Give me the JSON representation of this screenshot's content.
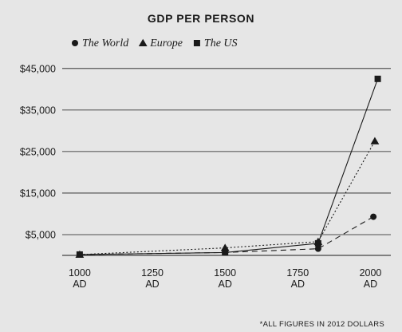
{
  "chart_data": {
    "type": "line",
    "title": "GDP PER PERSON",
    "footnote": "*ALL FIGURES IN 2012 DOLLARS",
    "x_ticks": [
      {
        "value": 1000,
        "label": [
          "1000",
          "AD"
        ]
      },
      {
        "value": 1250,
        "label": [
          "1250",
          "AD"
        ]
      },
      {
        "value": 1500,
        "label": [
          "1500",
          "AD"
        ]
      },
      {
        "value": 1750,
        "label": [
          "1750",
          "AD"
        ]
      },
      {
        "value": 2000,
        "label": [
          "2000",
          "AD"
        ]
      }
    ],
    "y_ticks": [
      {
        "value": 5000,
        "label": "$5,000"
      },
      {
        "value": 15000,
        "label": "$15,000"
      },
      {
        "value": 25000,
        "label": "$25,000"
      },
      {
        "value": 35000,
        "label": "$35,000"
      },
      {
        "value": 45000,
        "label": "$45,000"
      }
    ],
    "xlim": [
      940,
      2070
    ],
    "ylim": [
      0,
      46500
    ],
    "grid": true,
    "legend_position": "top",
    "series": [
      {
        "name": "The World",
        "marker": "circle",
        "dash": "7,5",
        "values": [
          {
            "x": 1000,
            "y": 200
          },
          {
            "x": 1500,
            "y": 700
          },
          {
            "x": 1820,
            "y": 1600
          },
          {
            "x": 2010,
            "y": 9300
          }
        ]
      },
      {
        "name": "Europe",
        "marker": "triangle",
        "dash": "2,2.5",
        "values": [
          {
            "x": 1000,
            "y": 200
          },
          {
            "x": 1500,
            "y": 1800
          },
          {
            "x": 1820,
            "y": 3300
          },
          {
            "x": 2015,
            "y": 27500
          }
        ]
      },
      {
        "name": "The US",
        "marker": "square",
        "dash": "",
        "values": [
          {
            "x": 1000,
            "y": 200
          },
          {
            "x": 1500,
            "y": 700
          },
          {
            "x": 1820,
            "y": 2900
          },
          {
            "x": 2025,
            "y": 42500
          }
        ]
      }
    ]
  }
}
